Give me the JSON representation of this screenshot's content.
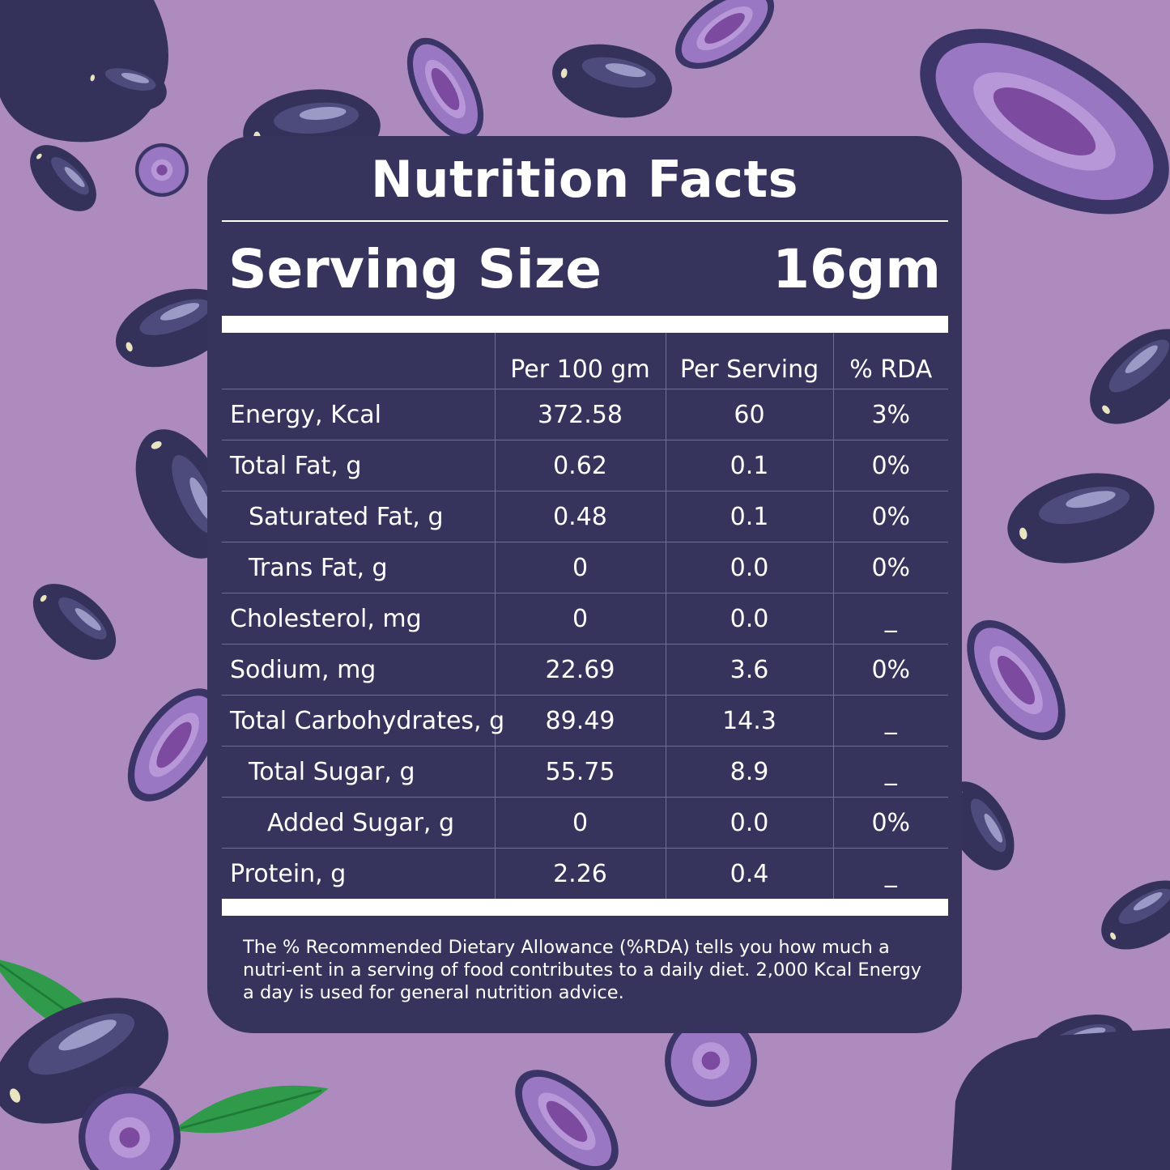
{
  "title": "Nutrition Facts",
  "serving": {
    "label": "Serving Size",
    "value": "16gm"
  },
  "columns": [
    "",
    "Per 100 gm",
    "Per Serving",
    "% RDA"
  ],
  "rows": [
    {
      "label": "Energy, Kcal",
      "per100": "372.58",
      "perServing": "60",
      "rda": "3%",
      "indent": 0
    },
    {
      "label": "Total Fat, g",
      "per100": "0.62",
      "perServing": "0.1",
      "rda": "0%",
      "indent": 0
    },
    {
      "label": "Saturated Fat, g",
      "per100": "0.48",
      "perServing": "0.1",
      "rda": "0%",
      "indent": 1
    },
    {
      "label": "Trans Fat, g",
      "per100": "0",
      "perServing": "0.0",
      "rda": "0%",
      "indent": 1
    },
    {
      "label": "Cholesterol, mg",
      "per100": "0",
      "perServing": "0.0",
      "rda": "_",
      "indent": 0
    },
    {
      "label": "Sodium, mg",
      "per100": "22.69",
      "perServing": "3.6",
      "rda": "0%",
      "indent": 0
    },
    {
      "label": "Total Carbohydrates, g",
      "per100": "89.49",
      "perServing": "14.3",
      "rda": "_",
      "indent": 0
    },
    {
      "label": "Total Sugar, g",
      "per100": "55.75",
      "perServing": "8.9",
      "rda": "_",
      "indent": 1
    },
    {
      "label": "Added Sugar, g",
      "per100": "0",
      "perServing": "0.0",
      "rda": "0%",
      "indent": 2
    },
    {
      "label": "Protein, g",
      "per100": "2.26",
      "perServing": "0.4",
      "rda": "_",
      "indent": 0
    }
  ],
  "footnote": "The % Recommended Dietary Allowance (%RDA) tells you how much a nutri-ent in a serving of food contributes to a daily diet. 2,000 Kcal Energy a day is used for general nutrition advice.",
  "colors": {
    "background": "#ad8bbf",
    "panel": "#36345c",
    "berry": "#34315a",
    "berry_highlight": "#8a88b8",
    "slice_flesh": "#9a77c2",
    "slice_core": "#7c4a9e",
    "leaf": "#2f9a4a"
  },
  "decorations": [
    "jamun-berry-illustration",
    "jamun-slice-illustration",
    "leaf-illustration"
  ]
}
